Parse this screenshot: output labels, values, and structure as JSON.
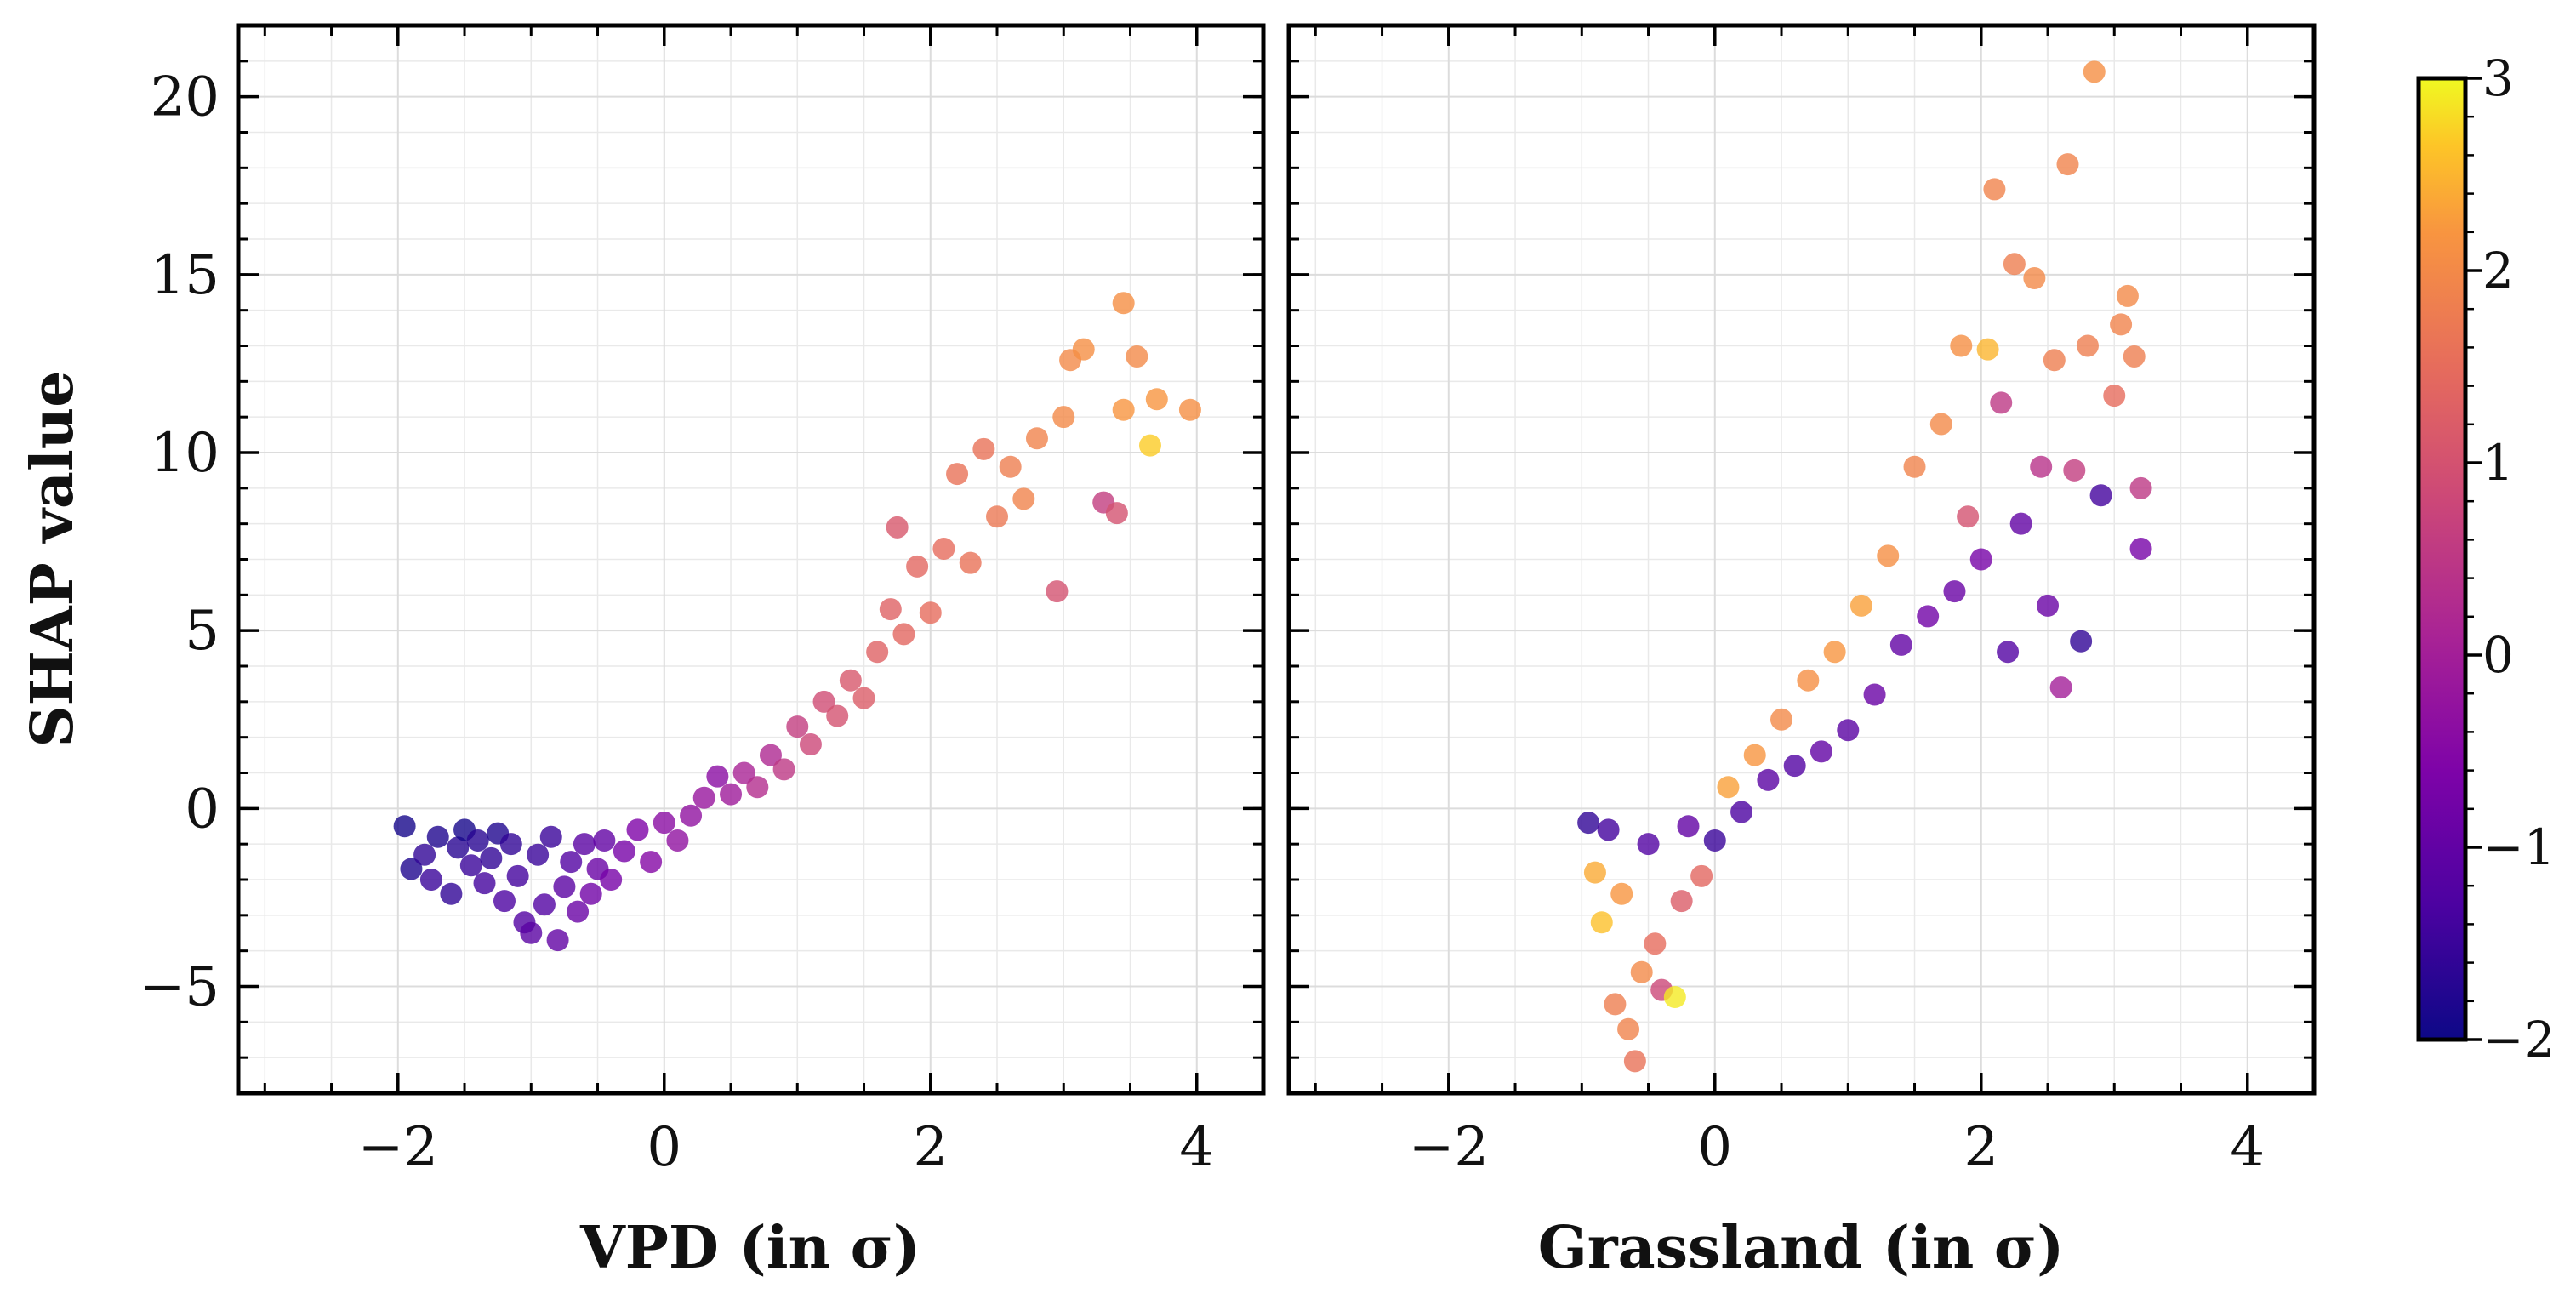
{
  "figure": {
    "colorbar": {
      "colormap": "plasma",
      "range": [
        -2,
        3
      ],
      "ticks": [
        -2,
        -1,
        0,
        1,
        2,
        3
      ],
      "tick_labels": [
        "−2",
        "−1",
        "0",
        "1",
        "2",
        "3"
      ]
    },
    "point_alpha": 0.8
  },
  "chart_data": [
    {
      "type": "scatter",
      "title": "",
      "xlabel": "VPD (in σ)",
      "ylabel": "SHAP value",
      "xlim": [
        -3.2,
        4.5
      ],
      "ylim": [
        -8,
        22
      ],
      "xticks": [
        -2,
        0,
        2,
        4
      ],
      "xtick_labels": [
        "−2",
        "0",
        "2",
        "4"
      ],
      "yticks": [
        -5,
        0,
        5,
        10,
        15,
        20
      ],
      "ytick_labels": [
        "−5",
        "0",
        "5",
        "10",
        "15",
        "20"
      ],
      "grid": true,
      "legend": "none",
      "color_by": "colorbar value",
      "points": [
        [
          -1.95,
          -0.5,
          -1.9
        ],
        [
          -1.9,
          -1.7,
          -1.8
        ],
        [
          -1.8,
          -1.3,
          -1.6
        ],
        [
          -1.75,
          -2.0,
          -1.5
        ],
        [
          -1.7,
          -0.8,
          -1.8
        ],
        [
          -1.6,
          -2.4,
          -1.6
        ],
        [
          -1.55,
          -1.1,
          -1.7
        ],
        [
          -1.5,
          -0.6,
          -1.9
        ],
        [
          -1.45,
          -1.6,
          -1.5
        ],
        [
          -1.4,
          -0.9,
          -1.7
        ],
        [
          -1.35,
          -2.1,
          -1.4
        ],
        [
          -1.3,
          -1.4,
          -1.6
        ],
        [
          -1.25,
          -0.7,
          -1.8
        ],
        [
          -1.2,
          -2.6,
          -1.3
        ],
        [
          -1.15,
          -1.0,
          -1.6
        ],
        [
          -1.1,
          -1.9,
          -1.4
        ],
        [
          -1.05,
          -3.2,
          -1.2
        ],
        [
          -1.0,
          -3.5,
          -1.1
        ],
        [
          -0.95,
          -1.3,
          -1.5
        ],
        [
          -0.9,
          -2.7,
          -1.2
        ],
        [
          -0.85,
          -0.8,
          -1.5
        ],
        [
          -0.8,
          -3.7,
          -1.0
        ],
        [
          -0.75,
          -2.2,
          -1.1
        ],
        [
          -0.7,
          -1.5,
          -1.2
        ],
        [
          -0.65,
          -2.9,
          -0.9
        ],
        [
          -0.6,
          -1.0,
          -1.1
        ],
        [
          -0.55,
          -2.4,
          -0.8
        ],
        [
          -0.5,
          -1.7,
          -0.9
        ],
        [
          -0.45,
          -0.9,
          -1.0
        ],
        [
          -0.4,
          -2.0,
          -0.7
        ],
        [
          -0.3,
          -1.2,
          -0.7
        ],
        [
          -0.2,
          -0.6,
          -0.6
        ],
        [
          -0.1,
          -1.5,
          -0.5
        ],
        [
          0.0,
          -0.4,
          -0.4
        ],
        [
          0.1,
          -0.9,
          -0.3
        ],
        [
          0.2,
          -0.2,
          -0.3
        ],
        [
          0.3,
          0.3,
          -0.2
        ],
        [
          0.4,
          0.9,
          -0.4
        ],
        [
          0.5,
          0.4,
          -0.1
        ],
        [
          0.6,
          1.0,
          0.1
        ],
        [
          0.7,
          0.6,
          0.3
        ],
        [
          0.8,
          1.5,
          0.2
        ],
        [
          0.9,
          1.1,
          0.5
        ],
        [
          1.0,
          2.3,
          0.6
        ],
        [
          1.1,
          1.8,
          0.8
        ],
        [
          1.2,
          3.0,
          0.9
        ],
        [
          1.3,
          2.6,
          1.0
        ],
        [
          1.4,
          3.6,
          1.1
        ],
        [
          1.5,
          3.1,
          1.2
        ],
        [
          1.6,
          4.4,
          1.3
        ],
        [
          1.7,
          5.6,
          1.3
        ],
        [
          1.75,
          7.9,
          1.1
        ],
        [
          1.8,
          4.9,
          1.4
        ],
        [
          1.9,
          6.8,
          1.4
        ],
        [
          2.0,
          5.5,
          1.5
        ],
        [
          2.1,
          7.3,
          1.5
        ],
        [
          2.2,
          9.4,
          1.6
        ],
        [
          2.3,
          6.9,
          1.6
        ],
        [
          2.4,
          10.1,
          1.6
        ],
        [
          2.5,
          8.2,
          1.7
        ],
        [
          2.6,
          9.6,
          1.8
        ],
        [
          2.7,
          8.7,
          1.9
        ],
        [
          2.8,
          10.4,
          1.9
        ],
        [
          2.95,
          6.1,
          1.0
        ],
        [
          3.0,
          11.0,
          2.0
        ],
        [
          3.05,
          12.6,
          2.0
        ],
        [
          3.15,
          12.9,
          2.1
        ],
        [
          3.3,
          8.6,
          0.6
        ],
        [
          3.4,
          8.3,
          1.0
        ],
        [
          3.45,
          14.2,
          2.1
        ],
        [
          3.45,
          11.2,
          2.2
        ],
        [
          3.55,
          12.7,
          2.0
        ],
        [
          3.7,
          11.5,
          2.2
        ],
        [
          3.65,
          10.2,
          2.7
        ],
        [
          3.95,
          11.2,
          2.1
        ]
      ]
    },
    {
      "type": "scatter",
      "title": "",
      "xlabel": "Grassland (in σ)",
      "ylabel": "",
      "xlim": [
        -3.2,
        4.5
      ],
      "ylim": [
        -8,
        22
      ],
      "xticks": [
        -2,
        0,
        2,
        4
      ],
      "xtick_labels": [
        "−2",
        "0",
        "2",
        "4"
      ],
      "yticks": [
        -5,
        0,
        5,
        10,
        15,
        20
      ],
      "ytick_labels": [
        "",
        "",
        "",
        "",
        "",
        ""
      ],
      "grid": true,
      "legend": "none",
      "color_by": "colorbar value",
      "points": [
        [
          -0.95,
          -0.4,
          -1.6
        ],
        [
          -0.9,
          -1.8,
          2.4
        ],
        [
          -0.85,
          -3.2,
          2.6
        ],
        [
          -0.8,
          -0.6,
          -1.4
        ],
        [
          -0.75,
          -5.5,
          1.8
        ],
        [
          -0.7,
          -2.4,
          2.2
        ],
        [
          -0.65,
          -6.2,
          1.9
        ],
        [
          -0.6,
          -7.1,
          1.6
        ],
        [
          -0.55,
          -4.6,
          2.0
        ],
        [
          -0.5,
          -1.0,
          -1.2
        ],
        [
          -0.45,
          -3.8,
          1.5
        ],
        [
          -0.4,
          -5.1,
          0.8
        ],
        [
          -0.3,
          -5.3,
          2.9
        ],
        [
          -0.25,
          -2.6,
          1.2
        ],
        [
          -0.2,
          -0.5,
          -1.0
        ],
        [
          -0.1,
          -1.9,
          1.4
        ],
        [
          0.0,
          -0.9,
          -1.5
        ],
        [
          0.1,
          0.6,
          2.3
        ],
        [
          0.2,
          -0.1,
          -1.3
        ],
        [
          0.3,
          1.5,
          2.2
        ],
        [
          0.4,
          0.8,
          -1.1
        ],
        [
          0.5,
          2.5,
          2.0
        ],
        [
          0.6,
          1.2,
          -1.2
        ],
        [
          0.7,
          3.6,
          2.1
        ],
        [
          0.8,
          1.6,
          -1.0
        ],
        [
          0.9,
          4.4,
          2.2
        ],
        [
          1.0,
          2.2,
          -1.1
        ],
        [
          1.1,
          5.7,
          2.3
        ],
        [
          1.2,
          3.2,
          -0.9
        ],
        [
          1.3,
          7.1,
          2.1
        ],
        [
          1.4,
          4.6,
          -1.0
        ],
        [
          1.5,
          9.6,
          1.9
        ],
        [
          1.6,
          5.4,
          -0.8
        ],
        [
          1.7,
          10.8,
          2.0
        ],
        [
          1.8,
          6.1,
          -0.9
        ],
        [
          1.85,
          13.0,
          2.1
        ],
        [
          1.9,
          8.2,
          1.0
        ],
        [
          2.0,
          7.0,
          -0.7
        ],
        [
          2.05,
          12.9,
          2.5
        ],
        [
          2.1,
          17.4,
          1.9
        ],
        [
          2.15,
          11.4,
          0.5
        ],
        [
          2.2,
          4.4,
          -1.2
        ],
        [
          2.25,
          15.3,
          1.8
        ],
        [
          2.3,
          8.0,
          -1.0
        ],
        [
          2.4,
          14.9,
          2.0
        ],
        [
          2.45,
          9.6,
          0.4
        ],
        [
          2.5,
          5.7,
          -0.9
        ],
        [
          2.55,
          12.6,
          1.8
        ],
        [
          2.6,
          3.4,
          0.0
        ],
        [
          2.65,
          18.1,
          1.9
        ],
        [
          2.7,
          9.5,
          0.6
        ],
        [
          2.75,
          4.7,
          -1.6
        ],
        [
          2.8,
          13.0,
          1.8
        ],
        [
          2.85,
          20.7,
          2.1
        ],
        [
          2.9,
          8.8,
          -1.4
        ],
        [
          3.0,
          11.6,
          1.5
        ],
        [
          3.05,
          13.6,
          1.9
        ],
        [
          3.1,
          14.4,
          2.0
        ],
        [
          3.15,
          12.7,
          1.8
        ],
        [
          3.2,
          7.3,
          -0.7
        ],
        [
          3.2,
          9.0,
          0.5
        ]
      ]
    }
  ]
}
